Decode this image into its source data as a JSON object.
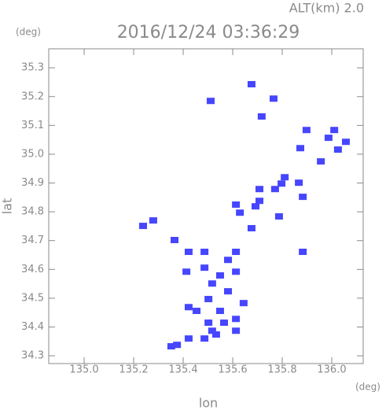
{
  "chart_data": {
    "type": "scatter",
    "title": "2016/12/24 03:36:29",
    "subtitle": "ALT(km)  2.0",
    "xlabel": "lon",
    "ylabel": "lat",
    "xunit": "(deg)",
    "yunit": "(deg)",
    "color": "#4646ff",
    "xlim": [
      134.857,
      136.127
    ],
    "ylim": [
      34.273,
      35.366
    ],
    "xticks": [
      {
        "value": 135,
        "label": "135.0"
      },
      135.2,
      135.4,
      135.6,
      135.8,
      {
        "value": 136,
        "label": "136.0"
      }
    ],
    "yticks": [
      34.3,
      34.4,
      34.5,
      34.6,
      34.7,
      34.8,
      34.9,
      {
        "value": 35,
        "label": "35.0"
      },
      35.1,
      35.2,
      35.3
    ],
    "x": [
      135.676,
      135.765,
      135.511,
      135.717,
      135.898,
      136.01,
      136.057,
      135.956,
      135.873,
      135.987,
      136.025,
      135.797,
      135.771,
      135.883,
      135.867,
      135.81,
      135.708,
      135.629,
      135.692,
      135.708,
      135.613,
      135.676,
      135.787,
      135.279,
      135.238,
      135.365,
      135.422,
      135.486,
      135.613,
      135.581,
      135.883,
      135.413,
      135.486,
      135.549,
      135.613,
      135.517,
      135.581,
      135.502,
      135.644,
      135.549,
      135.613,
      135.502,
      135.422,
      135.454,
      135.565,
      135.517,
      135.422,
      135.375,
      135.486,
      135.533,
      135.352,
      135.613
    ],
    "values": [
      35.243,
      35.193,
      35.185,
      35.131,
      35.084,
      35.084,
      35.043,
      34.975,
      35.021,
      35.057,
      35.016,
      34.898,
      34.879,
      34.852,
      34.901,
      34.92,
      34.879,
      34.797,
      34.819,
      34.838,
      34.825,
      34.743,
      34.784,
      34.77,
      34.751,
      34.702,
      34.661,
      34.661,
      34.661,
      34.633,
      34.661,
      34.592,
      34.606,
      34.579,
      34.592,
      34.551,
      34.524,
      34.497,
      34.483,
      34.456,
      34.428,
      34.415,
      34.469,
      34.456,
      34.415,
      34.387,
      34.36,
      34.338,
      34.36,
      34.374,
      34.333,
      34.387
    ]
  }
}
